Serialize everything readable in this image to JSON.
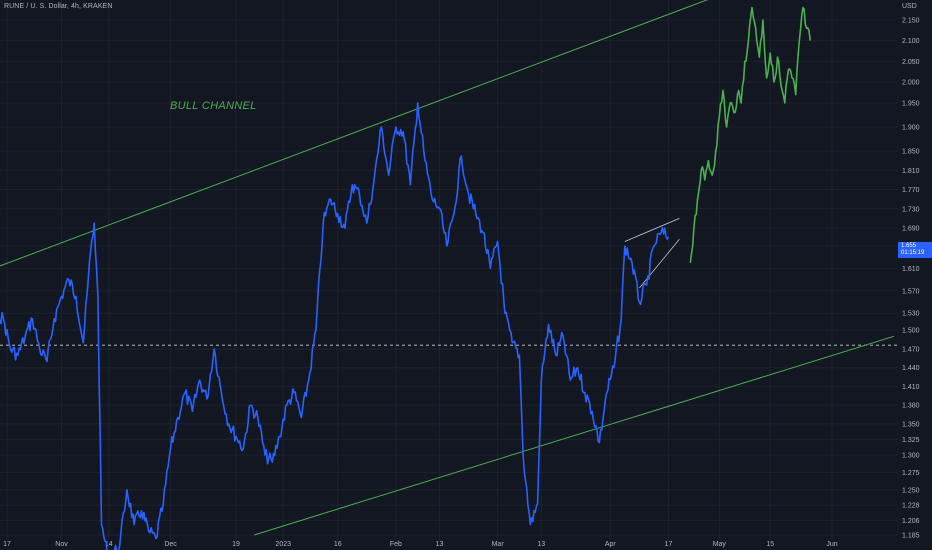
{
  "header": {
    "symbol_title": "RUNE / U. S. Dollar, 4h, KRAKEN",
    "currency": "USD"
  },
  "annotation": {
    "label": "BULL CHANNEL"
  },
  "price_badge": {
    "price": "1.655",
    "countdown": "01:15:19"
  },
  "colors": {
    "background": "#131722",
    "price_line": "#2962ff",
    "projection": "#4caf50",
    "channel": "#4caf50",
    "level_line": "#d1d4dc",
    "text": "#b2b5be"
  },
  "chart_data": {
    "type": "line",
    "title": "",
    "xlabel": "",
    "ylabel": "",
    "ylim": [
      1.185,
      2.185
    ],
    "y_ticks": [
      "2.150",
      "2.100",
      "2.050",
      "2.000",
      "1.950",
      "1.900",
      "1.850",
      "1.810",
      "1.770",
      "1.730",
      "1.690",
      "1.650",
      "1.610",
      "1.570",
      "1.530",
      "1.500",
      "1.470",
      "1.440",
      "1.410",
      "1.380",
      "1.350",
      "1.325",
      "1.300",
      "1.275",
      "1.250",
      "1.228",
      "1.206",
      "1.185"
    ],
    "x_ticks": [
      {
        "label": "17",
        "date": "2022-10-17"
      },
      {
        "label": "Nov",
        "date": "2022-11-01"
      },
      {
        "label": "14",
        "date": "2022-11-14"
      },
      {
        "label": "Dec",
        "date": "2022-12-01"
      },
      {
        "label": "19",
        "date": "2022-12-19"
      },
      {
        "label": "2023",
        "date": "2023-01-01"
      },
      {
        "label": "16",
        "date": "2023-01-16"
      },
      {
        "label": "Feb",
        "date": "2023-02-01"
      },
      {
        "label": "13",
        "date": "2023-02-13"
      },
      {
        "label": "Mar",
        "date": "2023-03-01"
      },
      {
        "label": "13",
        "date": "2023-03-13"
      },
      {
        "label": "Apr",
        "date": "2023-04-01"
      },
      {
        "label": "17",
        "date": "2023-04-17"
      },
      {
        "label": "May",
        "date": "2023-05-01"
      },
      {
        "label": "15",
        "date": "2023-05-15"
      },
      {
        "label": "Jun",
        "date": "2023-06-01"
      }
    ],
    "horizontal_level": 1.476,
    "series": [
      {
        "style": "solid",
        "points": [
          [
            "2022-10-06",
            1.56
          ],
          [
            "2022-10-08",
            1.66
          ],
          [
            "2022-10-10",
            1.62
          ],
          [
            "2022-10-12",
            1.58
          ],
          [
            "2022-10-14",
            1.53
          ],
          [
            "2022-10-16",
            1.52
          ],
          [
            "2022-10-18",
            1.47
          ],
          [
            "2022-10-20",
            1.46
          ],
          [
            "2022-10-22",
            1.49
          ],
          [
            "2022-10-24",
            1.52
          ],
          [
            "2022-10-26",
            1.47
          ],
          [
            "2022-10-28",
            1.45
          ],
          [
            "2022-10-30",
            1.52
          ],
          [
            "2022-11-01",
            1.56
          ],
          [
            "2022-11-03",
            1.59
          ],
          [
            "2022-11-05",
            1.56
          ],
          [
            "2022-11-07",
            1.48
          ],
          [
            "2022-11-09",
            1.64
          ],
          [
            "2022-11-10",
            1.7
          ],
          [
            "2022-11-11",
            1.56
          ],
          [
            "2022-11-12",
            1.2
          ],
          [
            "2022-11-14",
            1.15
          ],
          [
            "2022-11-17",
            1.17
          ],
          [
            "2022-11-19",
            1.25
          ],
          [
            "2022-11-21",
            1.2
          ],
          [
            "2022-11-23",
            1.22
          ],
          [
            "2022-11-25",
            1.19
          ],
          [
            "2022-11-27",
            1.18
          ],
          [
            "2022-11-29",
            1.23
          ],
          [
            "2022-12-01",
            1.31
          ],
          [
            "2022-12-03",
            1.36
          ],
          [
            "2022-12-05",
            1.4
          ],
          [
            "2022-12-07",
            1.37
          ],
          [
            "2022-12-09",
            1.42
          ],
          [
            "2022-12-11",
            1.39
          ],
          [
            "2022-12-13",
            1.47
          ],
          [
            "2022-12-15",
            1.4
          ],
          [
            "2022-12-17",
            1.35
          ],
          [
            "2022-12-19",
            1.33
          ],
          [
            "2022-12-21",
            1.31
          ],
          [
            "2022-12-23",
            1.38
          ],
          [
            "2022-12-25",
            1.36
          ],
          [
            "2022-12-27",
            1.3
          ],
          [
            "2022-12-29",
            1.29
          ],
          [
            "2022-12-31",
            1.33
          ],
          [
            "2023-01-02",
            1.38
          ],
          [
            "2023-01-04",
            1.4
          ],
          [
            "2023-01-06",
            1.36
          ],
          [
            "2023-01-08",
            1.42
          ],
          [
            "2023-01-10",
            1.5
          ],
          [
            "2023-01-12",
            1.7
          ],
          [
            "2023-01-14",
            1.75
          ],
          [
            "2023-01-16",
            1.72
          ],
          [
            "2023-01-18",
            1.69
          ],
          [
            "2023-01-20",
            1.78
          ],
          [
            "2023-01-22",
            1.76
          ],
          [
            "2023-01-24",
            1.7
          ],
          [
            "2023-01-26",
            1.79
          ],
          [
            "2023-01-28",
            1.9
          ],
          [
            "2023-01-30",
            1.8
          ],
          [
            "2023-02-01",
            1.9
          ],
          [
            "2023-02-03",
            1.89
          ],
          [
            "2023-02-05",
            1.78
          ],
          [
            "2023-02-07",
            1.95
          ],
          [
            "2023-02-09",
            1.83
          ],
          [
            "2023-02-11",
            1.75
          ],
          [
            "2023-02-13",
            1.73
          ],
          [
            "2023-02-15",
            1.65
          ],
          [
            "2023-02-17",
            1.72
          ],
          [
            "2023-02-19",
            1.84
          ],
          [
            "2023-02-21",
            1.76
          ],
          [
            "2023-02-23",
            1.72
          ],
          [
            "2023-02-25",
            1.68
          ],
          [
            "2023-02-27",
            1.61
          ],
          [
            "2023-03-01",
            1.66
          ],
          [
            "2023-03-03",
            1.53
          ],
          [
            "2023-03-05",
            1.48
          ],
          [
            "2023-03-07",
            1.46
          ],
          [
            "2023-03-08",
            1.3
          ],
          [
            "2023-03-10",
            1.2
          ],
          [
            "2023-03-12",
            1.23
          ],
          [
            "2023-03-13",
            1.42
          ],
          [
            "2023-03-15",
            1.51
          ],
          [
            "2023-03-17",
            1.46
          ],
          [
            "2023-03-19",
            1.49
          ],
          [
            "2023-03-21",
            1.42
          ],
          [
            "2023-03-23",
            1.44
          ],
          [
            "2023-03-25",
            1.4
          ],
          [
            "2023-03-27",
            1.37
          ],
          [
            "2023-03-29",
            1.32
          ],
          [
            "2023-03-31",
            1.4
          ],
          [
            "2023-04-02",
            1.44
          ],
          [
            "2023-04-04",
            1.52
          ],
          [
            "2023-04-05",
            1.65
          ],
          [
            "2023-04-07",
            1.62
          ],
          [
            "2023-04-09",
            1.55
          ],
          [
            "2023-04-11",
            1.58
          ],
          [
            "2023-04-13",
            1.65
          ],
          [
            "2023-04-15",
            1.68
          ],
          [
            "2023-04-17",
            1.67
          ]
        ]
      },
      {
        "style": "projection",
        "points": [
          [
            "2023-04-23",
            1.62
          ],
          [
            "2023-04-24",
            1.69
          ],
          [
            "2023-04-25",
            1.75
          ],
          [
            "2023-04-26",
            1.81
          ],
          [
            "2023-04-27",
            1.79
          ],
          [
            "2023-04-28",
            1.83
          ],
          [
            "2023-04-29",
            1.8
          ],
          [
            "2023-04-30",
            1.85
          ],
          [
            "2023-05-01",
            1.92
          ],
          [
            "2023-05-02",
            1.98
          ],
          [
            "2023-05-03",
            1.9
          ],
          [
            "2023-05-04",
            1.95
          ],
          [
            "2023-05-05",
            1.93
          ],
          [
            "2023-05-06",
            1.97
          ],
          [
            "2023-05-07",
            1.95
          ],
          [
            "2023-05-08",
            2.05
          ],
          [
            "2023-05-09",
            2.1
          ],
          [
            "2023-05-10",
            2.18
          ],
          [
            "2023-05-11",
            2.13
          ],
          [
            "2023-05-12",
            2.06
          ],
          [
            "2023-05-13",
            2.15
          ],
          [
            "2023-05-14",
            2.01
          ],
          [
            "2023-05-15",
            2.07
          ],
          [
            "2023-05-16",
            2.0
          ],
          [
            "2023-05-17",
            2.06
          ],
          [
            "2023-05-18",
            1.99
          ],
          [
            "2023-05-19",
            1.95
          ],
          [
            "2023-05-20",
            2.03
          ],
          [
            "2023-05-21",
            2.01
          ],
          [
            "2023-05-22",
            1.97
          ],
          [
            "2023-05-23",
            2.1
          ],
          [
            "2023-05-24",
            2.18
          ],
          [
            "2023-05-25",
            2.13
          ],
          [
            "2023-05-26",
            2.1
          ]
        ]
      }
    ],
    "channel_lines": [
      {
        "from": [
          "2022-10-01",
          1.58
        ],
        "to": [
          "2023-04-28",
          2.2
        ]
      },
      {
        "from": [
          "2022-12-24",
          1.185
        ],
        "to": [
          "2023-06-18",
          1.49
        ]
      }
    ],
    "wedge_lines": [
      {
        "from": [
          "2023-04-05",
          1.66
        ],
        "to": [
          "2023-04-20",
          1.71
        ]
      },
      {
        "from": [
          "2023-04-09",
          1.575
        ],
        "to": [
          "2023-04-20",
          1.665
        ]
      }
    ]
  }
}
